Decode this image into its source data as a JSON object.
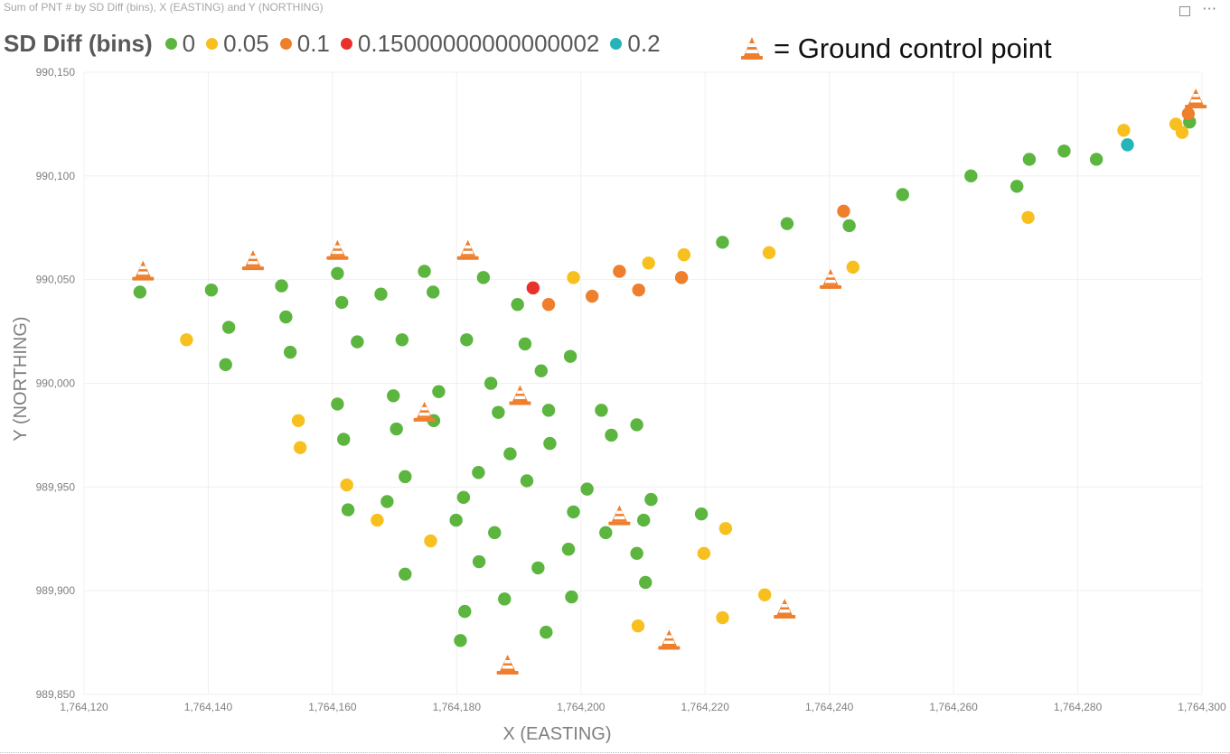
{
  "visual": {
    "title": "Sum of PNT # by SD Diff (bins), X (EASTING) and Y (NORTHING)",
    "focus_icon": "focus-mode-icon",
    "more_icon": "more-options-icon",
    "more_label": "···"
  },
  "legend": {
    "title": "SD Diff (bins)",
    "items": [
      {
        "label": "0",
        "color": "#5bb53f"
      },
      {
        "label": "0.05",
        "color": "#f7c01f"
      },
      {
        "label": "0.1",
        "color": "#ee7f2d"
      },
      {
        "label": "0.15000000000000002",
        "color": "#e8312b"
      },
      {
        "label": "0.2",
        "color": "#25b4b8"
      }
    ]
  },
  "gcp_key": {
    "icon": "traffic-cone-icon",
    "label": "= Ground control point"
  },
  "chart_data": {
    "type": "scatter",
    "title": "Sum of PNT # by SD Diff (bins), X (EASTING) and Y (NORTHING)",
    "xlabel": "X (EASTING)",
    "ylabel": "Y (NORTHING)",
    "xlim": [
      1764120,
      1764300
    ],
    "ylim": [
      989850,
      990150
    ],
    "x_ticks": [
      "1,764,120",
      "1,764,140",
      "1,764,160",
      "1,764,180",
      "1,764,200",
      "1,764,220",
      "1,764,240",
      "1,764,260",
      "1,764,280",
      "1,764,300"
    ],
    "y_ticks": [
      "990,150",
      "990,100",
      "990,050",
      "990,000",
      "989,950",
      "989,900",
      "989,850"
    ],
    "grid": true,
    "legend_position": "top-left",
    "series": [
      {
        "name": "0",
        "color": "#5bb53f",
        "points": [
          [
            1764129.0,
            990044
          ],
          [
            1764140.5,
            990045
          ],
          [
            1764143.3,
            990027
          ],
          [
            1764142.8,
            990009
          ],
          [
            1764151.8,
            990047
          ],
          [
            1764152.5,
            990032
          ],
          [
            1764153.2,
            990015
          ],
          [
            1764160.8,
            990053
          ],
          [
            1764161.5,
            990039
          ],
          [
            1764160.8,
            989990
          ],
          [
            1764161.8,
            989973
          ],
          [
            1764162.5,
            989939
          ],
          [
            1764164.0,
            990020
          ],
          [
            1764167.8,
            990043
          ],
          [
            1764168.8,
            989943
          ],
          [
            1764169.8,
            989994
          ],
          [
            1764170.3,
            989978
          ],
          [
            1764171.2,
            990021
          ],
          [
            1764171.7,
            989955
          ],
          [
            1764171.7,
            989908
          ],
          [
            1764174.8,
            990054
          ],
          [
            1764176.2,
            990044
          ],
          [
            1764176.3,
            989982
          ],
          [
            1764177.1,
            989996
          ],
          [
            1764179.9,
            989934
          ],
          [
            1764180.6,
            989876
          ],
          [
            1764181.1,
            989945
          ],
          [
            1764181.3,
            989890
          ],
          [
            1764181.6,
            990021
          ],
          [
            1764183.5,
            989957
          ],
          [
            1764183.6,
            989914
          ],
          [
            1764184.3,
            990051
          ],
          [
            1764185.5,
            990000
          ],
          [
            1764186.1,
            989928
          ],
          [
            1764186.7,
            989986
          ],
          [
            1764187.7,
            989896
          ],
          [
            1764188.6,
            989966
          ],
          [
            1764189.8,
            990038
          ],
          [
            1764191.0,
            990019
          ],
          [
            1764191.3,
            989953
          ],
          [
            1764193.1,
            989911
          ],
          [
            1764193.6,
            990006
          ],
          [
            1764194.4,
            989880
          ],
          [
            1764194.8,
            989987
          ],
          [
            1764195.0,
            989971
          ],
          [
            1764198.0,
            989920
          ],
          [
            1764198.3,
            990013
          ],
          [
            1764198.5,
            989897
          ],
          [
            1764198.8,
            989938
          ],
          [
            1764201.0,
            989949
          ],
          [
            1764203.3,
            989987
          ],
          [
            1764204.0,
            989928
          ],
          [
            1764204.9,
            989975
          ],
          [
            1764209.0,
            989980
          ],
          [
            1764209.0,
            989918
          ],
          [
            1764210.1,
            989934
          ],
          [
            1764210.4,
            989904
          ],
          [
            1764211.3,
            989944
          ],
          [
            1764219.4,
            989937
          ],
          [
            1764222.8,
            990068
          ],
          [
            1764233.2,
            990077
          ],
          [
            1764243.2,
            990076
          ],
          [
            1764251.8,
            990091
          ],
          [
            1764262.8,
            990100
          ],
          [
            1764270.2,
            990095
          ],
          [
            1764272.2,
            990108
          ],
          [
            1764277.8,
            990112
          ],
          [
            1764283.0,
            990108
          ],
          [
            1764298.0,
            990126
          ]
        ]
      },
      {
        "name": "0.05",
        "color": "#f7c01f",
        "points": [
          [
            1764136.5,
            990021
          ],
          [
            1764154.5,
            989982
          ],
          [
            1764154.8,
            989969
          ],
          [
            1764162.3,
            989951
          ],
          [
            1764167.2,
            989934
          ],
          [
            1764175.8,
            989924
          ],
          [
            1764198.8,
            990051
          ],
          [
            1764209.2,
            989883
          ],
          [
            1764210.9,
            990058
          ],
          [
            1764216.6,
            990062
          ],
          [
            1764219.8,
            989918
          ],
          [
            1764222.8,
            989887
          ],
          [
            1764223.3,
            989930
          ],
          [
            1764229.6,
            989898
          ],
          [
            1764230.3,
            990063
          ],
          [
            1764243.8,
            990056
          ],
          [
            1764272.0,
            990080
          ],
          [
            1764287.4,
            990122
          ],
          [
            1764295.8,
            990125
          ],
          [
            1764296.8,
            990121
          ]
        ]
      },
      {
        "name": "0.1",
        "color": "#ee7f2d",
        "points": [
          [
            1764194.8,
            990038
          ],
          [
            1764201.8,
            990042
          ],
          [
            1764206.2,
            990054
          ],
          [
            1764209.3,
            990045
          ],
          [
            1764216.2,
            990051
          ],
          [
            1764242.3,
            990083
          ],
          [
            1764297.8,
            990130
          ]
        ]
      },
      {
        "name": "0.15000000000000002",
        "color": "#e8312b",
        "points": [
          [
            1764192.3,
            990046
          ]
        ]
      },
      {
        "name": "0.2",
        "color": "#25b4b8",
        "points": [
          [
            1764288.0,
            990115
          ]
        ]
      }
    ],
    "ground_control_points": [
      [
        1764129.5,
        990050
      ],
      [
        1764147.2,
        990055
      ],
      [
        1764160.8,
        990060
      ],
      [
        1764181.8,
        990060
      ],
      [
        1764174.8,
        989982
      ],
      [
        1764190.2,
        989990
      ],
      [
        1764188.2,
        989860
      ],
      [
        1764206.2,
        989932
      ],
      [
        1764214.2,
        989872
      ],
      [
        1764232.8,
        989887
      ],
      [
        1764240.2,
        990046
      ],
      [
        1764299.0,
        990133
      ]
    ]
  }
}
